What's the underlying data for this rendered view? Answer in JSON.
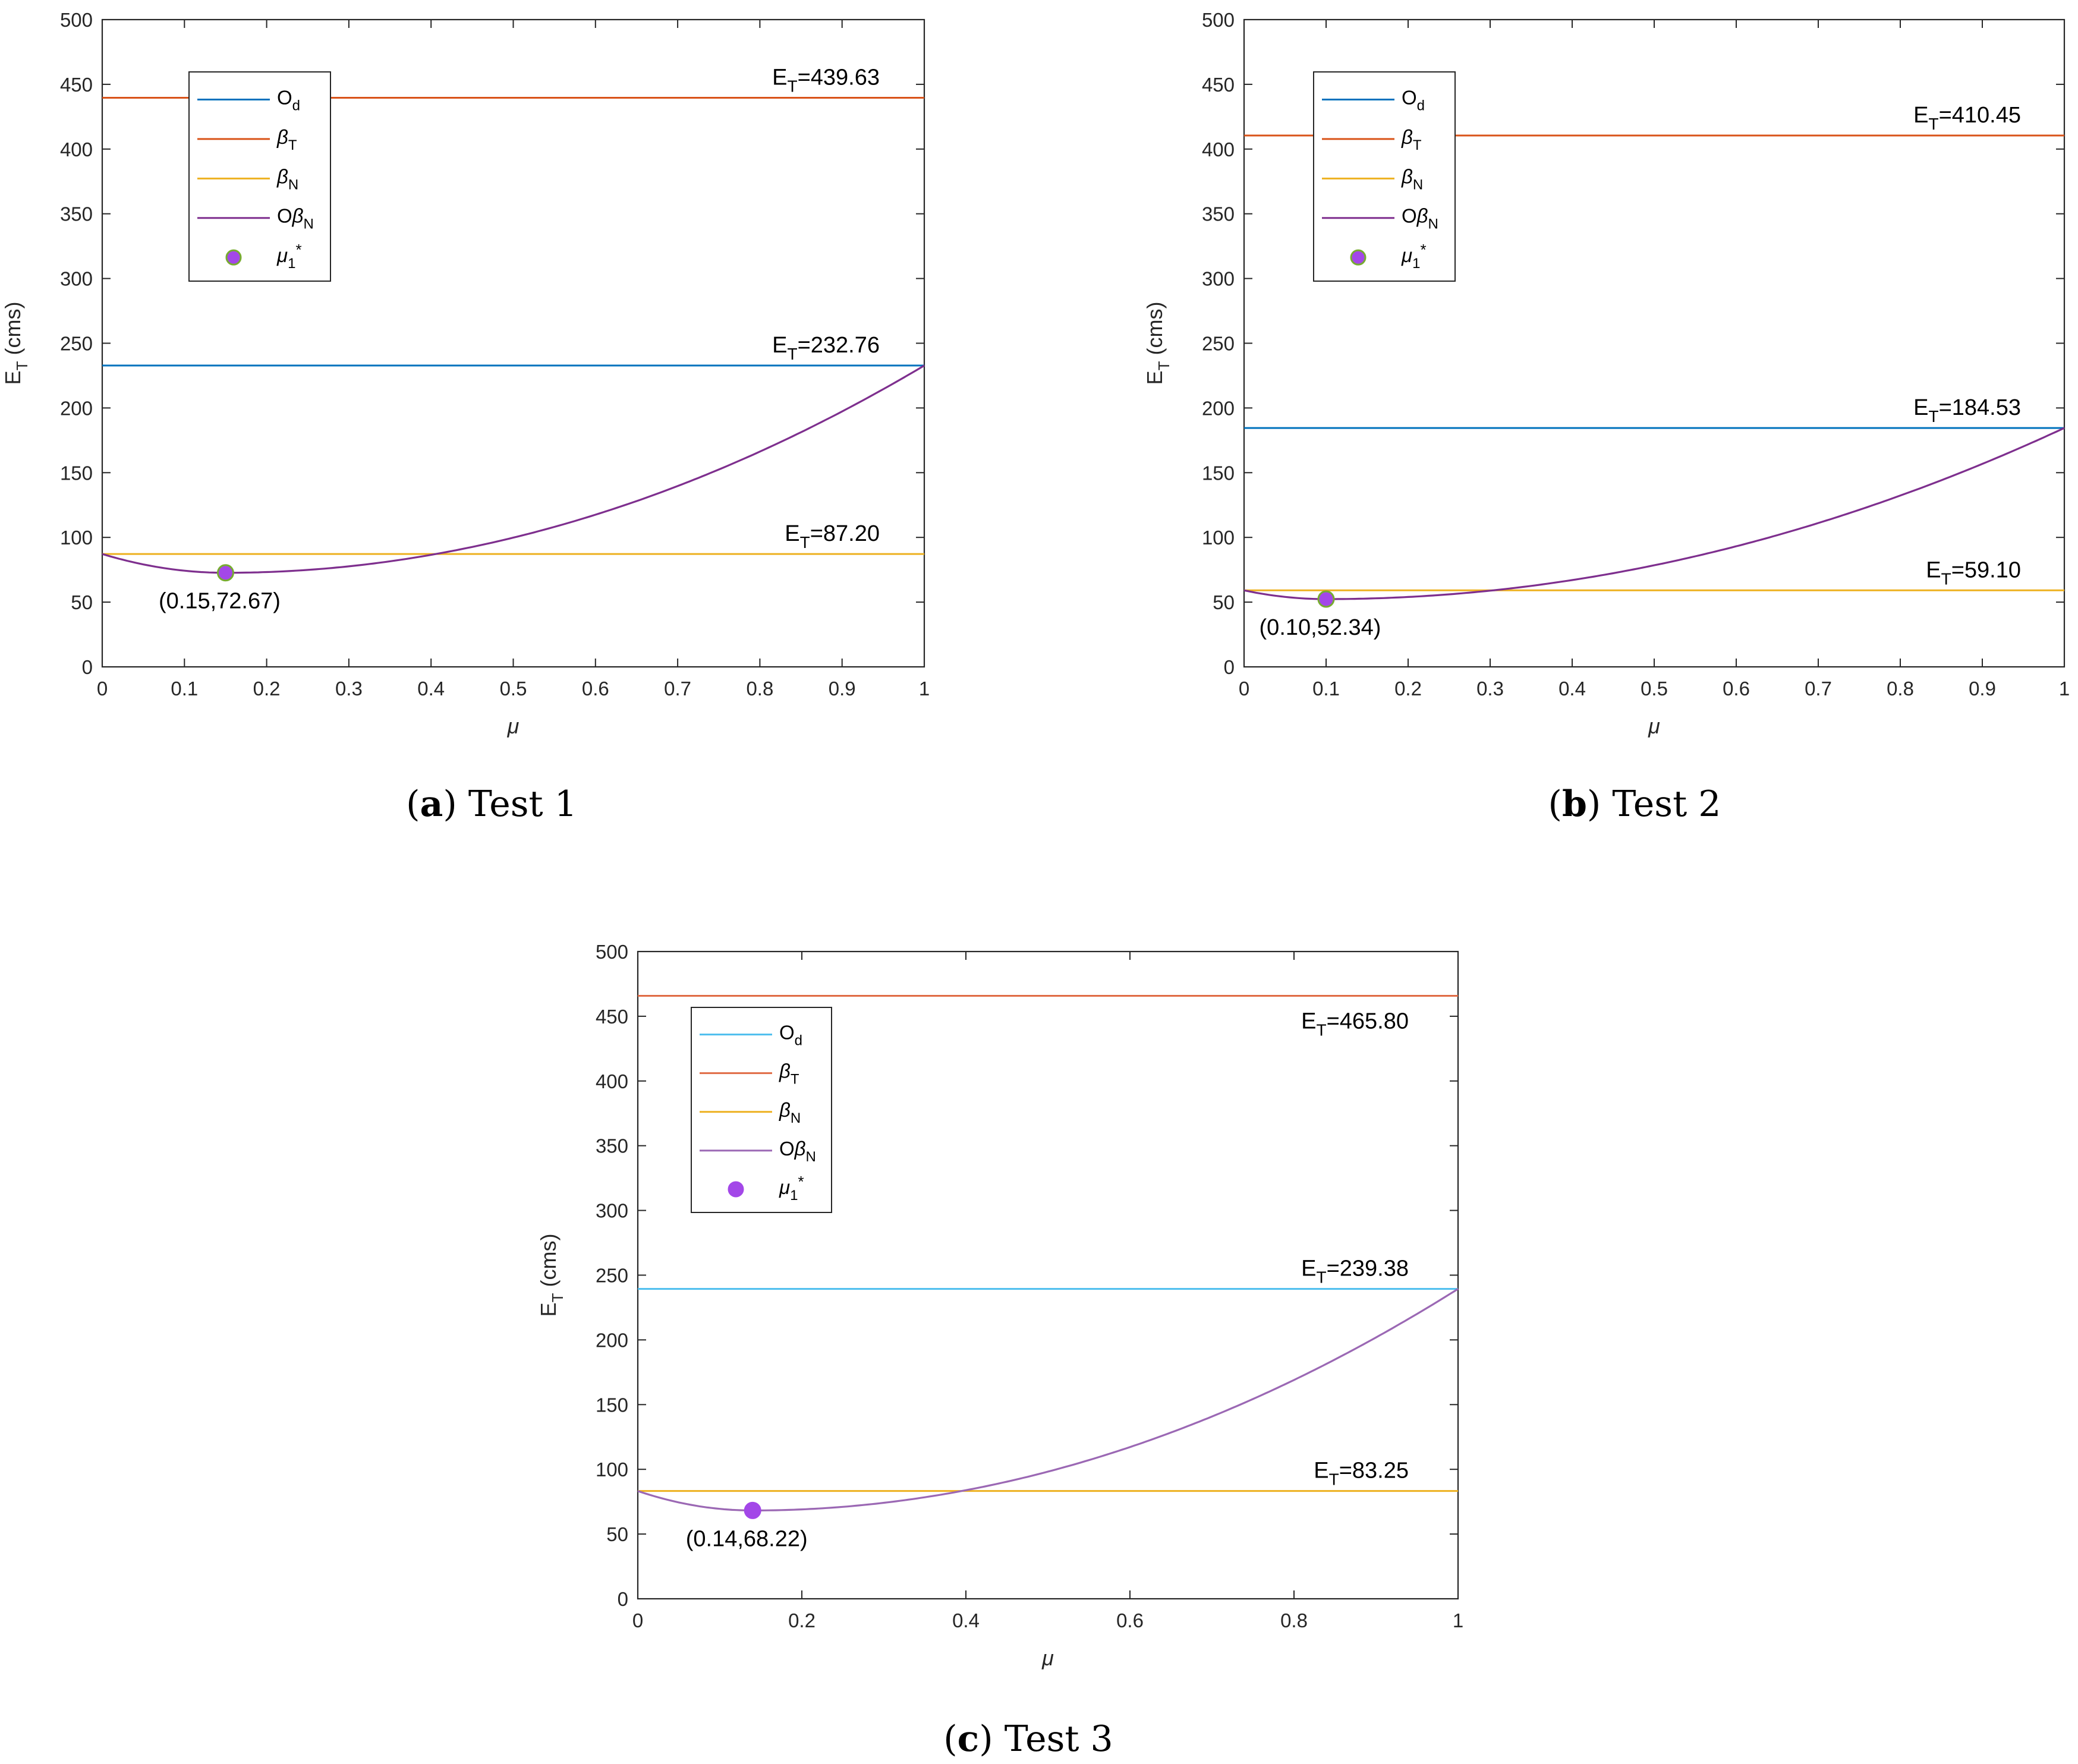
{
  "chart_data": [
    {
      "type": "line",
      "caption": {
        "letter": "a",
        "text": "Test 1"
      },
      "xlabel": "μ",
      "ylabel": "E_T (cms)",
      "xlim": [
        0,
        1
      ],
      "ylim": [
        0,
        500
      ],
      "xticks": [
        "0",
        "0.1",
        "0.2",
        "0.3",
        "0.4",
        "0.5",
        "0.6",
        "0.7",
        "0.8",
        "0.9",
        "1"
      ],
      "yticks": [
        "0",
        "50",
        "100",
        "150",
        "200",
        "250",
        "300",
        "350",
        "400",
        "450",
        "500"
      ],
      "series": [
        {
          "name": "Od",
          "type": "constant",
          "value": 232.76,
          "label": "E_T=232.76",
          "color": "#0072BD"
        },
        {
          "name": "βT",
          "type": "constant",
          "value": 439.63,
          "label": "E_T=439.63",
          "color": "#D95319"
        },
        {
          "name": "βN",
          "type": "constant",
          "value": 87.2,
          "label": "E_T=87.20",
          "color": "#EDB120"
        },
        {
          "name": "OβN",
          "type": "curve",
          "color": "#7E2F8E",
          "start": 87.2,
          "min_x": 0.15,
          "min_y": 72.67,
          "end": 232.76
        }
      ],
      "optimum": {
        "name": "μ1*",
        "x": 0.15,
        "y": 72.67,
        "label": "(0.15,72.67)",
        "color": "#A347E8",
        "edge": "#77AC30"
      }
    },
    {
      "type": "line",
      "caption": {
        "letter": "b",
        "text": "Test 2"
      },
      "xlabel": "μ",
      "ylabel": "E_T (cms)",
      "xlim": [
        0,
        1
      ],
      "ylim": [
        0,
        500
      ],
      "xticks": [
        "0",
        "0.1",
        "0.2",
        "0.3",
        "0.4",
        "0.5",
        "0.6",
        "0.7",
        "0.8",
        "0.9",
        "1"
      ],
      "yticks": [
        "0",
        "50",
        "100",
        "150",
        "200",
        "250",
        "300",
        "350",
        "400",
        "450",
        "500"
      ],
      "series": [
        {
          "name": "Od",
          "type": "constant",
          "value": 184.53,
          "label": "E_T=184.53",
          "color": "#0072BD"
        },
        {
          "name": "βT",
          "type": "constant",
          "value": 410.45,
          "label": "E_T=410.45",
          "color": "#D95319"
        },
        {
          "name": "βN",
          "type": "constant",
          "value": 59.1,
          "label": "E_T=59.10",
          "color": "#EDB120"
        },
        {
          "name": "OβN",
          "type": "curve",
          "color": "#7E2F8E",
          "start": 59.1,
          "min_x": 0.1,
          "min_y": 52.34,
          "end": 184.53
        }
      ],
      "optimum": {
        "name": "μ1*",
        "x": 0.1,
        "y": 52.34,
        "label": "(0.10,52.34)",
        "color": "#A347E8",
        "edge": "#77AC30"
      }
    },
    {
      "type": "line",
      "caption": {
        "letter": "c",
        "text": "Test 3"
      },
      "xlabel": "μ",
      "ylabel": "E_T (cms)",
      "xlim": [
        0,
        1
      ],
      "ylim": [
        0,
        500
      ],
      "xticks": [
        "0",
        "0.2",
        "0.4",
        "0.6",
        "0.8",
        "1"
      ],
      "yticks": [
        "0",
        "50",
        "100",
        "150",
        "200",
        "250",
        "300",
        "350",
        "400",
        "450",
        "500"
      ],
      "series": [
        {
          "name": "Od",
          "type": "constant",
          "value": 239.38,
          "label": "E_T=239.38",
          "color": "#4DBEEE"
        },
        {
          "name": "βT",
          "type": "constant",
          "value": 465.8,
          "label": "E_T=465.80",
          "color": "#E06B45"
        },
        {
          "name": "βN",
          "type": "constant",
          "value": 83.25,
          "label": "E_T=83.25",
          "color": "#EDB120"
        },
        {
          "name": "OβN",
          "type": "curve",
          "color": "#9B68B4",
          "start": 83.25,
          "min_x": 0.14,
          "min_y": 68.22,
          "end": 239.38
        }
      ],
      "optimum": {
        "name": "μ1*",
        "x": 0.14,
        "y": 68.22,
        "label": "(0.14,68.22)",
        "color": "#A347E8",
        "edge": "#A347E8"
      }
    }
  ]
}
